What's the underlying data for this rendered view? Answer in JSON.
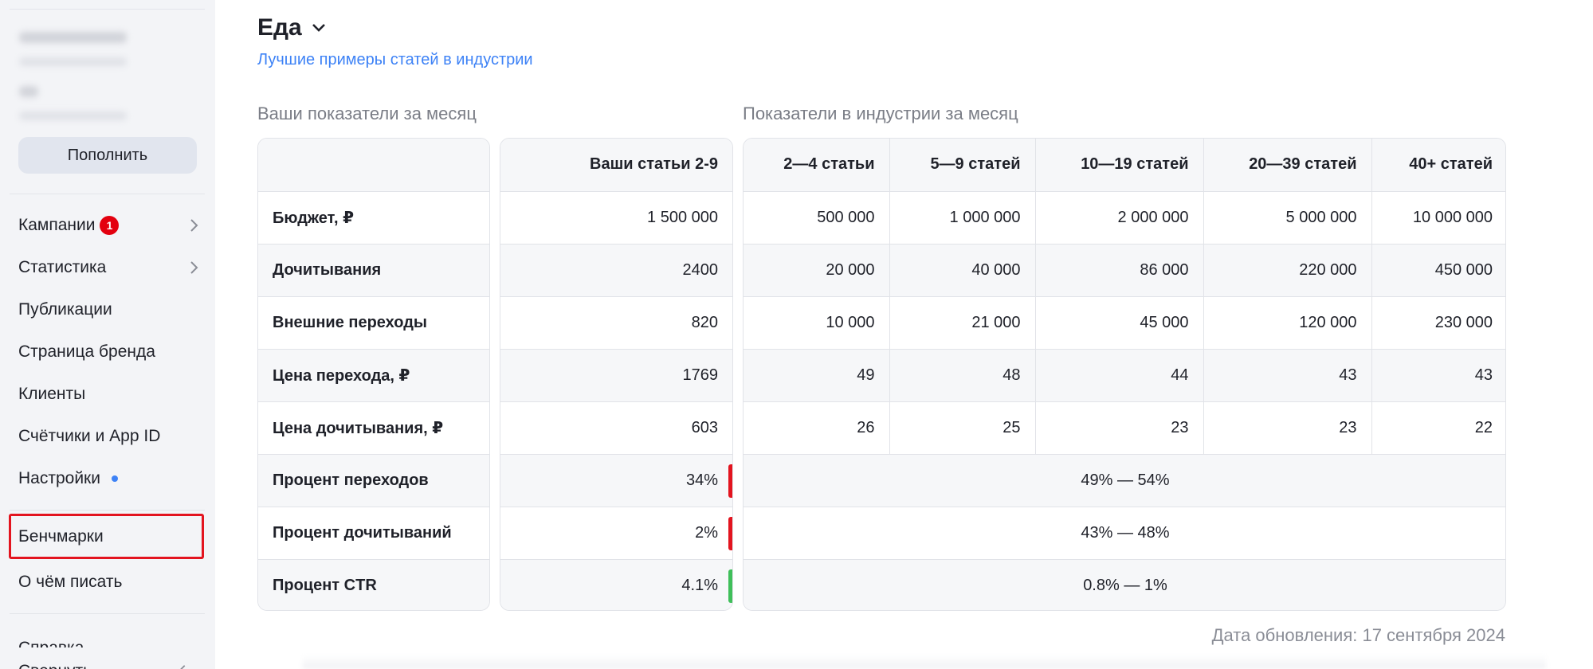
{
  "sidebar": {
    "topup_label": "Пополнить",
    "nav": [
      {
        "label": "Кампании",
        "badge": "1",
        "has_arrow": true
      },
      {
        "label": "Статистика",
        "has_arrow": true
      },
      {
        "label": "Публикации"
      },
      {
        "label": "Страница бренда"
      },
      {
        "label": "Клиенты"
      },
      {
        "label": "Счётчики и App ID"
      },
      {
        "label": "Настройки",
        "dot": true
      }
    ],
    "nav2": [
      {
        "label": "Бенчмарки",
        "selected": true
      },
      {
        "label": "О чём писать"
      }
    ],
    "nav3": [
      {
        "label": "Справка"
      },
      {
        "label": "Свернуть"
      }
    ]
  },
  "header": {
    "title": "Еда",
    "link": "Лучшие примеры статей в индустрии"
  },
  "your_stats": {
    "heading": "Ваши показатели за месяц",
    "column_header": "Ваши статьи 2-9",
    "rows": [
      {
        "label": "Бюджет, ₽",
        "value": "1 500 000"
      },
      {
        "label": "Дочитывания",
        "value": "2400"
      },
      {
        "label": "Внешние переходы",
        "value": "820"
      },
      {
        "label": "Цена перехода, ₽",
        "value": "1769"
      },
      {
        "label": "Цена дочитывания, ₽",
        "value": "603"
      },
      {
        "label": "Процент переходов",
        "value": "34%",
        "status": "bad"
      },
      {
        "label": "Процент дочитываний",
        "value": "2%",
        "status": "bad"
      },
      {
        "label": "Процент CTR",
        "value": "4.1%",
        "status": "good"
      }
    ]
  },
  "industry_stats": {
    "heading": "Показатели в индустрии за месяц",
    "columns": [
      "2—4 статьи",
      "5—9 статей",
      "10—19 статей",
      "20—39 статей",
      "40+ статей"
    ],
    "rows": [
      [
        "500 000",
        "1 000 000",
        "2 000 000",
        "5 000 000",
        "10 000 000"
      ],
      [
        "20 000",
        "40 000",
        "86 000",
        "220 000",
        "450 000"
      ],
      [
        "10 000",
        "21 000",
        "45 000",
        "120 000",
        "230 000"
      ],
      [
        "49",
        "48",
        "44",
        "43",
        "43"
      ],
      [
        "26",
        "25",
        "23",
        "23",
        "22"
      ]
    ],
    "ranges": [
      "49% — 54%",
      "43% — 48%",
      "0.8% — 1%"
    ]
  },
  "footer": {
    "update_date": "Дата обновления: 17 сентября 2024"
  },
  "colors": {
    "bad": "#e3141f",
    "good": "#3fbf5a",
    "link": "#3d82f6",
    "badge": "#e3000f"
  }
}
